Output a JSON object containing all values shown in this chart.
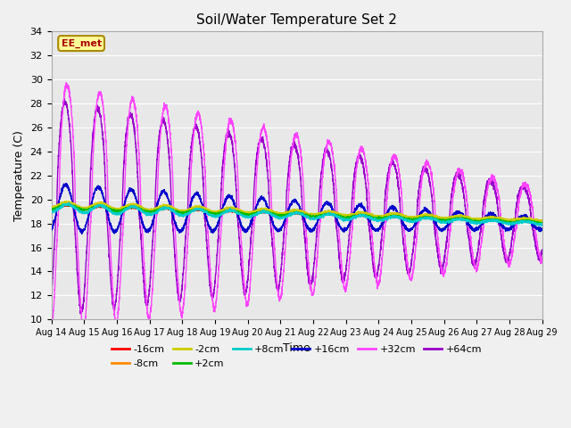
{
  "title": "Soil/Water Temperature Set 2",
  "xlabel": "Time",
  "ylabel": "Temperature (C)",
  "ylim": [
    10,
    34
  ],
  "xlim_days": 15,
  "yticks": [
    10,
    12,
    14,
    16,
    18,
    20,
    22,
    24,
    26,
    28,
    30,
    32,
    34
  ],
  "xtick_labels": [
    "Aug 14",
    "Aug 15",
    "Aug 16",
    "Aug 17",
    "Aug 18",
    "Aug 19",
    "Aug 20",
    "Aug 21",
    "Aug 22",
    "Aug 23",
    "Aug 24",
    "Aug 25",
    "Aug 26",
    "Aug 27",
    "Aug 28",
    "Aug 29"
  ],
  "series": {
    "-16cm": {
      "color": "#ff0000",
      "linewidth": 1.0,
      "zorder": 5
    },
    "-8cm": {
      "color": "#ff8800",
      "linewidth": 1.0,
      "zorder": 5
    },
    "-2cm": {
      "color": "#cccc00",
      "linewidth": 1.0,
      "zorder": 5
    },
    "+2cm": {
      "color": "#00bb00",
      "linewidth": 1.0,
      "zorder": 5
    },
    "+8cm": {
      "color": "#00cccc",
      "linewidth": 1.0,
      "zorder": 5
    },
    "+16cm": {
      "color": "#0000cc",
      "linewidth": 1.0,
      "zorder": 4
    },
    "+32cm": {
      "color": "#ff44ff",
      "linewidth": 1.0,
      "zorder": 3
    },
    "+64cm": {
      "color": "#9900cc",
      "linewidth": 1.0,
      "zorder": 2
    }
  },
  "annotation_text": "EE_met",
  "annotation_color": "#aa0000",
  "annotation_bg": "#ffff99",
  "annotation_border": "#aa8800",
  "fig_bg": "#f0f0f0",
  "plot_bg": "#e8e8e8",
  "grid_color": "#ffffff"
}
